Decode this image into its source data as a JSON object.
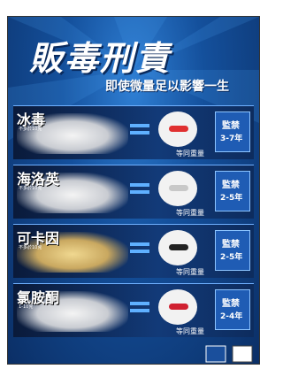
{
  "header": {
    "title": "販毒刑責",
    "subtitle": "即使微量足以影響一生"
  },
  "rows": [
    {
      "drug": "冰毒",
      "note": "不多於10克",
      "equal_label": "等同重量",
      "penalty_label": "監禁",
      "penalty_term": "3-7年"
    },
    {
      "drug": "海洛英",
      "note": "不多於10克",
      "equal_label": "等同重量",
      "penalty_label": "監禁",
      "penalty_term": "2-5年"
    },
    {
      "drug": "可卡因",
      "note": "不多於10克",
      "equal_label": "等同重量",
      "penalty_label": "監禁",
      "penalty_term": "2-5年"
    },
    {
      "drug": "氯胺酮",
      "note": "1-10克",
      "equal_label": "等同重量",
      "penalty_label": "監禁",
      "penalty_term": "2-4年"
    }
  ]
}
